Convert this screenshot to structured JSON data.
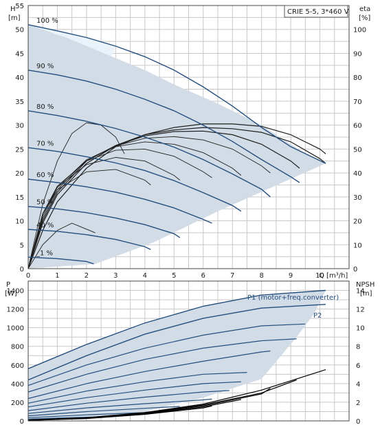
{
  "colors": {
    "curve": "#244e7e",
    "envelope_fill": "#d2dce6",
    "light_fill": "#eaf2fa",
    "eta_curve": "#1e1e1e",
    "npsh_curve": "#000000",
    "grid": "#c8c8c8"
  },
  "legend_box": "CRIE 5-5, 3*460 V",
  "chart_data": [
    {
      "type": "line",
      "panel": "head-efficiency",
      "title": "",
      "xlabel": "Q [m³/h]",
      "ylabel_left_name": "H",
      "ylabel_left_unit": "[m]",
      "ylabel_right_name": "eta",
      "ylabel_right_unit": "[%]",
      "xlim": [
        0,
        11
      ],
      "ylim_left": [
        0,
        55
      ],
      "ylim_right": [
        0,
        110
      ],
      "x_ticks": [
        0,
        1,
        2,
        3,
        4,
        5,
        6,
        7,
        8,
        9,
        10
      ],
      "y_left_ticks": [
        0,
        5,
        10,
        15,
        20,
        25,
        30,
        35,
        40,
        45,
        50,
        55
      ],
      "y_right_ticks": [
        0,
        10,
        20,
        30,
        40,
        50,
        60,
        70,
        80,
        90,
        100
      ],
      "grid": true,
      "series": [
        {
          "name": "100 %",
          "x": [
            0,
            1,
            2,
            3,
            4,
            5,
            6,
            7,
            8,
            9,
            10.2
          ],
          "values": [
            51,
            49.7,
            48.3,
            46.5,
            44.3,
            41.5,
            38,
            34,
            29.5,
            25.5,
            22
          ]
        },
        {
          "name": "90 %",
          "x": [
            0,
            1,
            2,
            3,
            4,
            5,
            6,
            7,
            8,
            9,
            9.3
          ],
          "values": [
            41.5,
            40.5,
            39.2,
            37.5,
            35.4,
            33,
            30,
            26.6,
            22.8,
            19.2,
            18
          ]
        },
        {
          "name": "80 %",
          "x": [
            0,
            1,
            2,
            3,
            4,
            5,
            6,
            7,
            8,
            8.3
          ],
          "values": [
            33,
            32,
            30.8,
            29.3,
            27.5,
            25.4,
            22.8,
            19.8,
            16.6,
            15
          ]
        },
        {
          "name": "70 %",
          "x": [
            0,
            1,
            2,
            3,
            4,
            5,
            6,
            7,
            7.3
          ],
          "values": [
            25.3,
            24.5,
            23.4,
            22.1,
            20.5,
            18.4,
            15.9,
            13.2,
            12
          ]
        },
        {
          "name": "60 %",
          "x": [
            0,
            1,
            2,
            3,
            4,
            5,
            6,
            6.3
          ],
          "values": [
            18.7,
            18,
            17.1,
            16,
            14.5,
            12.7,
            10.3,
            9.5
          ]
        },
        {
          "name": "50 %",
          "x": [
            0,
            1,
            2,
            3,
            4,
            5,
            5.2
          ],
          "values": [
            13,
            12.5,
            11.7,
            10.6,
            9.2,
            7.3,
            6.5
          ]
        },
        {
          "name": "40 %",
          "x": [
            0,
            1,
            2,
            3,
            4,
            4.2
          ],
          "values": [
            8.2,
            7.8,
            7.1,
            6.1,
            4.6,
            4
          ]
        },
        {
          "name": "_1 %",
          "x": [
            0,
            1,
            2,
            2.25
          ],
          "values": [
            2.4,
            2.1,
            1.5,
            1
          ]
        }
      ],
      "operating_envelope": {
        "x": [
          0,
          2.3,
          4.3,
          6.5,
          10.2,
          9.5,
          8,
          6.5,
          5,
          4,
          3.2,
          2.6,
          2.1,
          1.7,
          1.3,
          0.9,
          0.55,
          0.25,
          0
        ],
        "values": [
          0,
          1,
          5.5,
          12,
          22,
          24,
          30,
          34.5,
          38.5,
          41.5,
          43.5,
          45,
          46.3,
          47.3,
          48.3,
          49.1,
          49.9,
          50.5,
          51
        ]
      },
      "eta_curves": [
        {
          "x": [
            0,
            0.5,
            1,
            1.5,
            2,
            2.3
          ],
          "values": [
            0,
            10,
            16,
            19,
            16.5,
            15
          ]
        },
        {
          "x": [
            0,
            0.5,
            1,
            1.5,
            2,
            2.5,
            3,
            3.3
          ],
          "values": [
            0,
            27,
            45,
            56.5,
            61,
            60,
            55,
            48
          ]
        },
        {
          "x": [
            0,
            0.5,
            1,
            2,
            3,
            4,
            5,
            6,
            7,
            8,
            9,
            10,
            10.2
          ],
          "values": [
            0,
            16,
            28,
            42,
            51,
            56,
            59,
            60.5,
            60.5,
            59.5,
            56,
            50,
            48
          ]
        },
        {
          "x": [
            0,
            0.5,
            1,
            2,
            3,
            4,
            5,
            6,
            7,
            8,
            9,
            10,
            10.2
          ],
          "values": [
            0,
            19,
            31,
            44,
            51.5,
            56,
            58,
            59,
            58.5,
            57,
            53,
            46,
            44
          ]
        },
        {
          "x": [
            0,
            0.5,
            1,
            2,
            3,
            4,
            5,
            6,
            7,
            8,
            9,
            9.3
          ],
          "values": [
            0,
            20,
            32,
            45,
            51.5,
            55.5,
            57.3,
            57.5,
            56,
            52,
            45,
            42
          ]
        },
        {
          "x": [
            0,
            0.5,
            1,
            2,
            3,
            4,
            5,
            6,
            7,
            8,
            8.3
          ],
          "values": [
            0,
            21,
            33,
            45.5,
            51.3,
            54.5,
            55.2,
            53.8,
            50,
            43,
            40
          ]
        },
        {
          "x": [
            0,
            0.5,
            1,
            2,
            3,
            4,
            5,
            6,
            7,
            7.3
          ],
          "values": [
            0,
            22,
            34,
            45.5,
            51,
            53,
            52,
            48.5,
            42,
            39
          ]
        },
        {
          "x": [
            0,
            0.5,
            1,
            2,
            3,
            4,
            5,
            6,
            6.3
          ],
          "values": [
            0,
            23,
            34.5,
            45,
            49.5,
            50,
            47,
            40.5,
            38
          ]
        },
        {
          "x": [
            0,
            0.5,
            1,
            2,
            3,
            4,
            5,
            5.2
          ],
          "values": [
            0,
            23,
            34,
            43.5,
            46.5,
            45,
            39,
            37
          ]
        },
        {
          "x": [
            0,
            0.5,
            1,
            2,
            3,
            4,
            4.2
          ],
          "values": [
            0,
            23,
            33,
            40.5,
            41.5,
            37,
            35
          ]
        }
      ]
    },
    {
      "type": "line",
      "panel": "power-npsh",
      "title": "",
      "xlabel": "",
      "ylabel_left_name": "P",
      "ylabel_left_unit": "[W]",
      "ylabel_right_name": "NPSH",
      "ylabel_right_unit": "[m]",
      "xlim": [
        0,
        11
      ],
      "ylim_left": [
        0,
        1500
      ],
      "ylim_right": [
        0,
        15
      ],
      "y_left_ticks": [
        0,
        200,
        400,
        600,
        800,
        1000,
        1200,
        1400
      ],
      "y_right_ticks": [
        0,
        2,
        4,
        6,
        8,
        10,
        12,
        14
      ],
      "grid": true,
      "series": [
        {
          "name": "P1 (motor+freq.converter)",
          "x": [
            0,
            2,
            4,
            6,
            8,
            10.2
          ],
          "values": [
            560,
            820,
            1050,
            1230,
            1350,
            1400
          ]
        },
        {
          "name": "P2",
          "x": [
            0,
            2,
            4,
            6,
            8,
            10.2
          ],
          "values": [
            440,
            700,
            930,
            1100,
            1210,
            1250
          ]
        }
      ],
      "power_envelope": {
        "x": [
          0,
          0.5,
          1,
          2,
          3,
          4,
          5,
          6,
          7,
          8,
          9,
          10.2,
          9.8,
          9.2,
          8,
          6,
          4,
          2.3,
          0
        ],
        "values": [
          560,
          620,
          690,
          820,
          930,
          1040,
          1140,
          1230,
          1290,
          1340,
          1375,
          1400,
          1150,
          900,
          450,
          250,
          100,
          30,
          0
        ]
      },
      "scaled_speed_power": [
        {
          "x": [
            0,
            2,
            4,
            6,
            8,
            9.5
          ],
          "values": [
            380,
            600,
            780,
            920,
            1020,
            1040
          ]
        },
        {
          "x": [
            0,
            2,
            4,
            6,
            8,
            9.2
          ],
          "values": [
            310,
            500,
            660,
            780,
            860,
            880
          ]
        },
        {
          "x": [
            0,
            2,
            4,
            6,
            8,
            8.3
          ],
          "values": [
            240,
            400,
            530,
            640,
            740,
            750
          ]
        },
        {
          "x": [
            0,
            2,
            4,
            6,
            7.5
          ],
          "values": [
            190,
            320,
            420,
            500,
            520
          ]
        },
        {
          "x": [
            0,
            2,
            4,
            6,
            7.3
          ],
          "values": [
            150,
            250,
            330,
            400,
            420
          ]
        },
        {
          "x": [
            0,
            2,
            4,
            6,
            6.9
          ],
          "values": [
            110,
            190,
            255,
            310,
            325
          ]
        },
        {
          "x": [
            0,
            2,
            4,
            6,
            6.3
          ],
          "values": [
            80,
            140,
            185,
            225,
            235
          ]
        },
        {
          "x": [
            0,
            2,
            4,
            5.2
          ],
          "values": [
            55,
            100,
            135,
            155
          ]
        },
        {
          "x": [
            0,
            2,
            4,
            4.2
          ],
          "values": [
            35,
            65,
            90,
            95
          ]
        },
        {
          "x": [
            0,
            1,
            2,
            2.3
          ],
          "values": [
            20,
            30,
            40,
            42
          ]
        }
      ],
      "npsh_curves": [
        {
          "x": [
            0,
            2,
            4,
            6,
            8,
            10.2
          ],
          "values": [
            0.1,
            0.35,
            0.9,
            1.8,
            3.3,
            5.5
          ]
        },
        {
          "x": [
            0,
            2,
            4,
            6,
            8,
            9.2
          ],
          "values": [
            0.1,
            0.35,
            0.85,
            1.7,
            3.0,
            4.4
          ]
        },
        {
          "x": [
            0,
            2,
            4,
            6,
            8,
            8.3
          ],
          "values": [
            0.1,
            0.3,
            0.8,
            1.6,
            2.9,
            3.5
          ]
        },
        {
          "x": [
            0,
            2,
            4,
            6,
            7.3
          ],
          "values": [
            0.05,
            0.3,
            0.75,
            1.5,
            2.3
          ]
        },
        {
          "x": [
            0,
            2,
            4,
            6,
            6.3
          ],
          "values": [
            0.05,
            0.25,
            0.7,
            1.4,
            1.6
          ]
        }
      ]
    }
  ]
}
